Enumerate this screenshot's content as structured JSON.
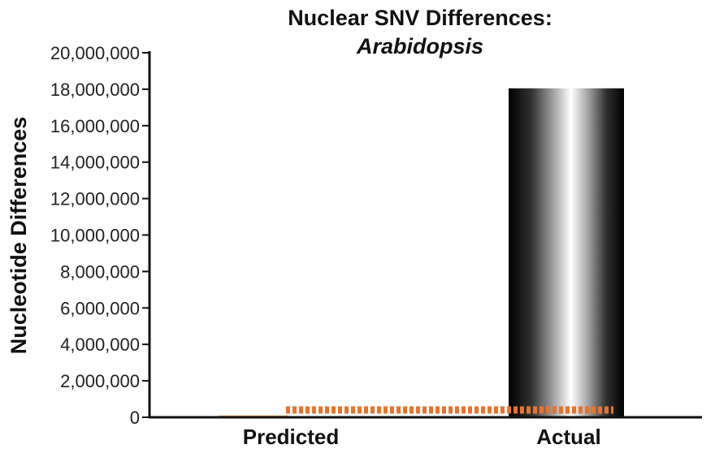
{
  "chart_data": {
    "type": "bar",
    "title": "Nuclear SNV Differences:",
    "subtitle": "Arabidopsis",
    "ylabel": "Nucleotide Differences",
    "xlabel": "",
    "ylim": [
      0,
      20000000
    ],
    "yticks": [
      0,
      2000000,
      4000000,
      6000000,
      8000000,
      10000000,
      12000000,
      14000000,
      16000000,
      18000000,
      20000000
    ],
    "ytick_labels": [
      "0",
      "2,000,000",
      "4,000,000",
      "6,000,000",
      "8,000,000",
      "10,000,000",
      "12,000,000",
      "14,000,000",
      "16,000,000",
      "18,000,000",
      "20,000,000"
    ],
    "categories": [
      "Predicted",
      "Actual"
    ],
    "values": [
      100000,
      18050000
    ],
    "bar_color": "#1a1a1a",
    "predicted_bar_color": "#f3a24a",
    "reference_line": {
      "value": 400000,
      "color": "#e8732c",
      "style": "dashed"
    },
    "grid": false,
    "legend": "none"
  }
}
